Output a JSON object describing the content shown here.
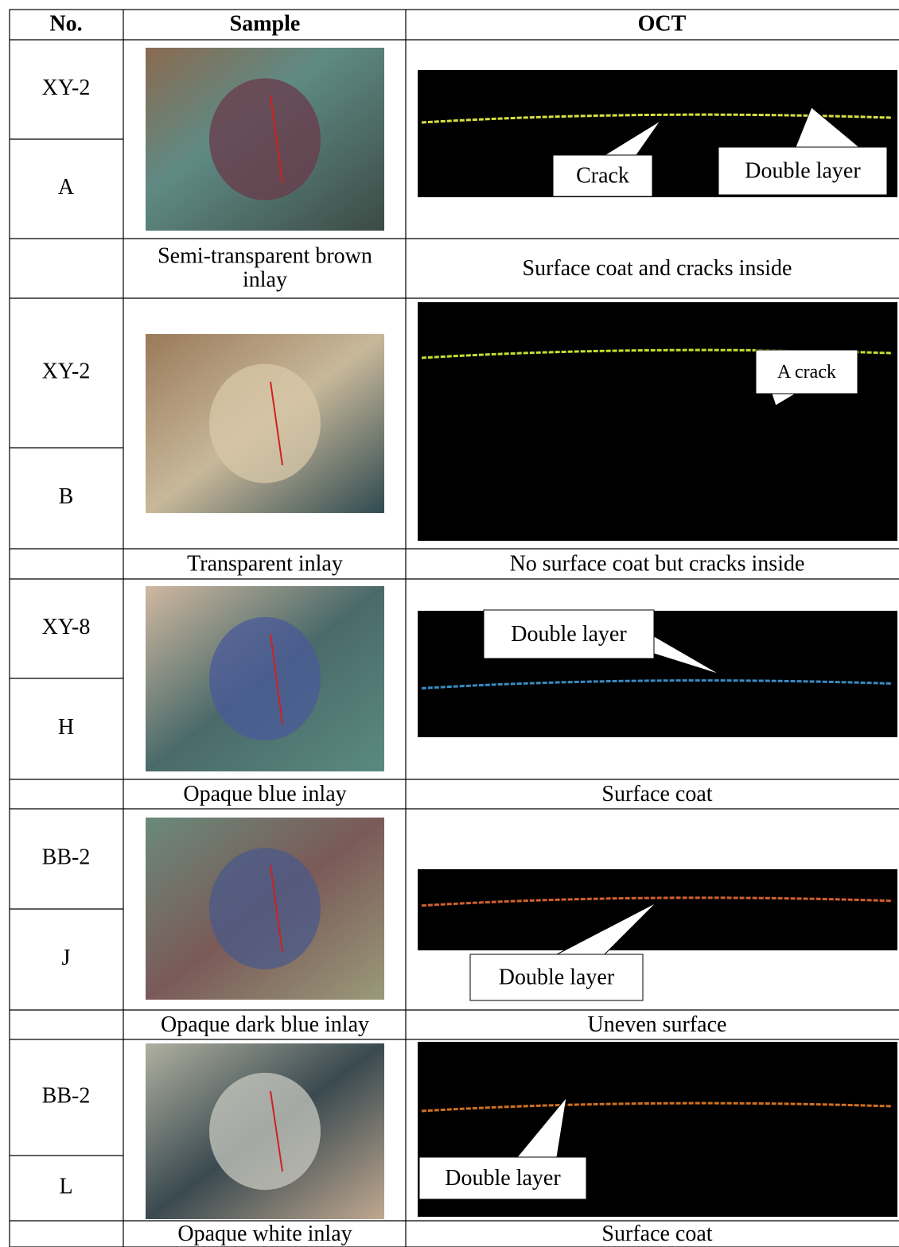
{
  "table": {
    "header": [
      "No.",
      "Sample",
      "OCT"
    ],
    "rows": [
      {
        "id": "XY-2",
        "label": "A",
        "sample": "Semi-transparent brown inlay",
        "oct": "Surface coat and cracks inside",
        "callouts": [
          "Crack",
          "Double layer"
        ]
      },
      {
        "id": "XY-2",
        "label": "B",
        "sample": "Transparent inlay",
        "oct": "No surface coat but cracks inside",
        "callouts": [
          "A crack"
        ]
      },
      {
        "id": "XY-8",
        "label": "H",
        "sample": "Opaque blue inlay",
        "oct": "Surface coat",
        "callouts": [
          "Double layer"
        ]
      },
      {
        "id": "BB-2",
        "label": "J",
        "sample": "Opaque dark blue inlay",
        "oct": "Uneven surface",
        "callouts": [
          "Double layer"
        ]
      },
      {
        "id": "BB-2",
        "label": "L",
        "sample": "Opaque white inlay",
        "oct": "Surface coat",
        "callouts": [
          "Double layer"
        ]
      }
    ]
  }
}
